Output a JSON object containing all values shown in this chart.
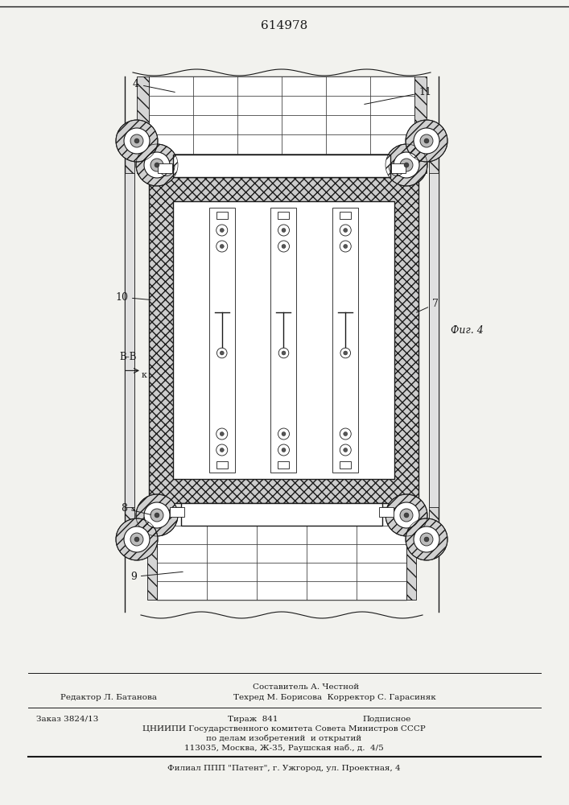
{
  "patent_number": "614978",
  "fig_label": "Фиг. 4",
  "section_label": "В-В",
  "section_arrow_label": "к",
  "label_4": "4",
  "label_7": "7",
  "label_8": "8",
  "label_9": "9",
  "label_10": "10",
  "label_11": "11",
  "footer_line1_left": "Редактор Л. Батанова",
  "footer_line1_center": "Составитель А. Честной",
  "footer_line1_right": "Техред М. Борисова  Корректор С. Гарасиняк",
  "footer_line2_left": "Заказ 3824/13",
  "footer_line2_center": "Тираж  841",
  "footer_line2_right": "Подписное",
  "footer_line3": "ЦНИИПИ Государственного комитета Совета Министров СССР",
  "footer_line4": "по делам изобретений  и открытий",
  "footer_line5": "113035, Москва, Ж-35, Раушская наб., д.  4/5",
  "footer_bottom": "Филиал ППП \"Патент\", г. Ужгород, ул. Проектная, 4",
  "bg_color": "#f2f2ee",
  "line_color": "#1a1a1a"
}
